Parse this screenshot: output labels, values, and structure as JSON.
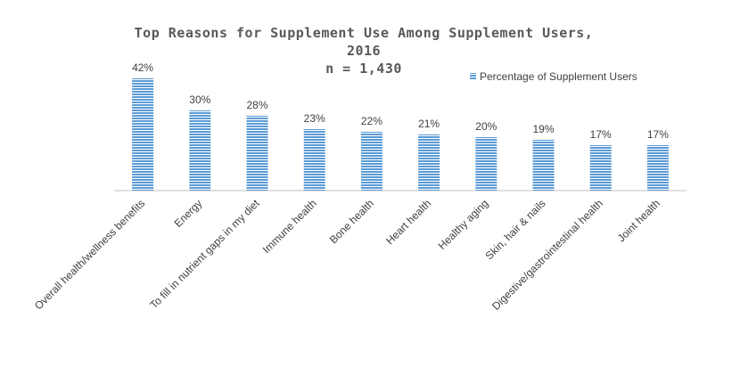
{
  "chart_data": {
    "type": "bar",
    "title_lines": [
      "Top Reasons for Supplement Use Among Supplement Users,",
      "2016",
      "n = 1,430"
    ],
    "categories": [
      "Overall health/wellness benefits",
      "Energy",
      "To fill in nutrient gaps in my diet",
      "Immune health",
      "Bone health",
      "Heart health",
      "Healthy aging",
      "Skin, hair & nails",
      "Digestive/gastrointestinal health",
      "Joint health"
    ],
    "series": [
      {
        "name": "Percentage of Supplement Users",
        "values": [
          42,
          30,
          28,
          23,
          22,
          21,
          20,
          19,
          17,
          17
        ],
        "data_labels": [
          "42%",
          "30%",
          "28%",
          "23%",
          "22%",
          "21%",
          "20%",
          "19%",
          "17%",
          "17%"
        ],
        "color": "#5b9bd5"
      }
    ],
    "ylim": [
      0,
      42
    ],
    "xlabel": "",
    "ylabel": "",
    "grid": false,
    "legend_position": "top-right"
  }
}
